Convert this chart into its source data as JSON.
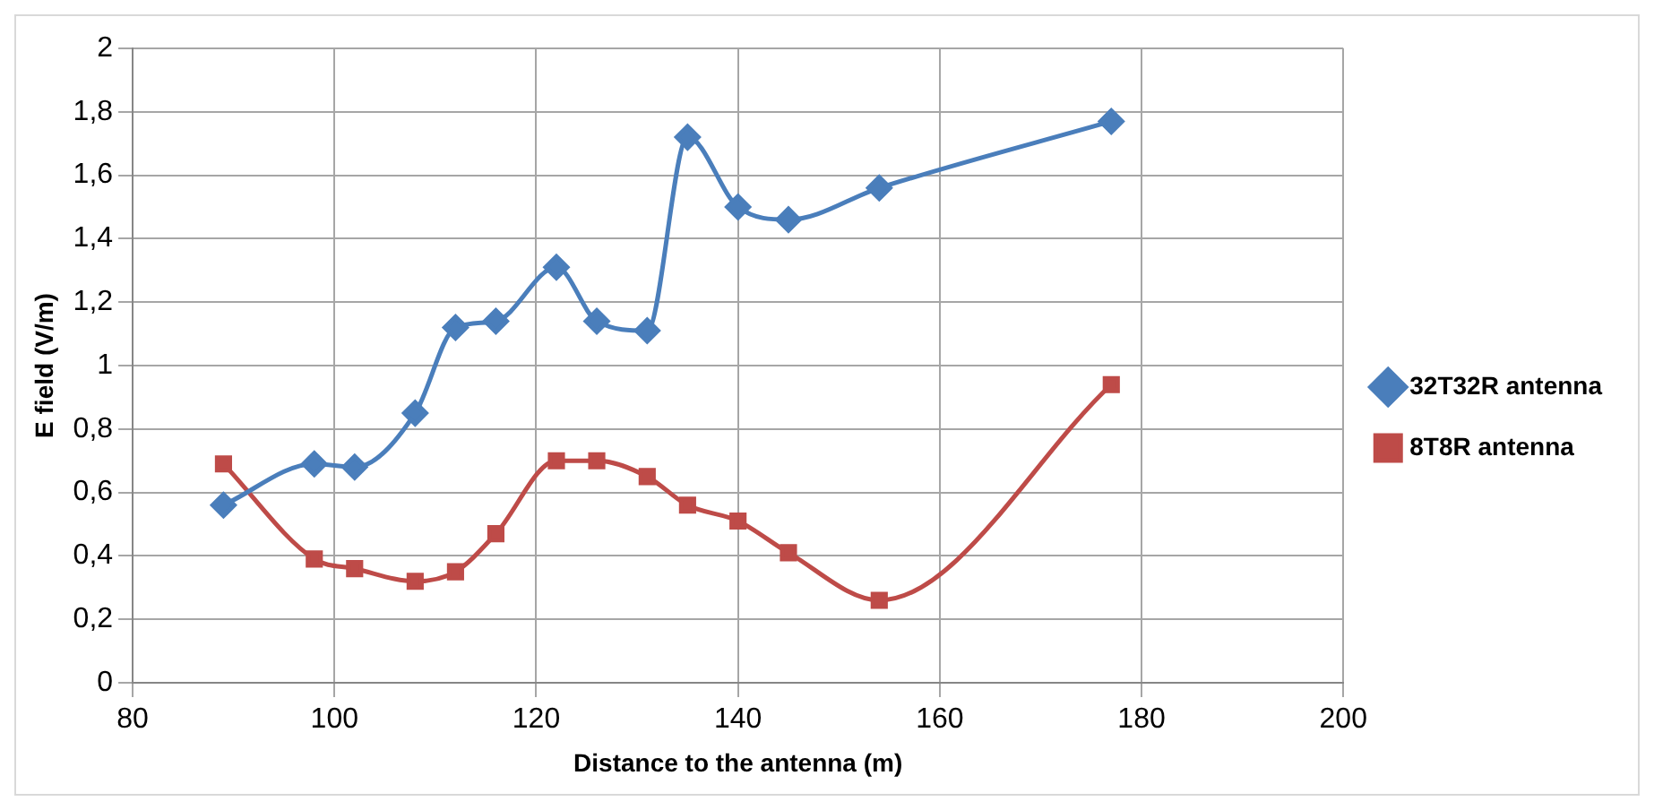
{
  "chart_data": {
    "type": "line",
    "xlabel": "Distance to the antenna (m)",
    "ylabel": "E field (V/m)",
    "xlim": [
      80,
      200
    ],
    "xticks": [
      80,
      100,
      120,
      140,
      160,
      180,
      200
    ],
    "ylim": [
      0,
      2
    ],
    "yticks": [
      0,
      {
        "value": 0.2,
        "label": "0,2"
      },
      {
        "value": 0.4,
        "label": "0,4"
      },
      {
        "value": 0.6,
        "label": "0,6"
      },
      {
        "value": 0.8,
        "label": "0,8"
      },
      1,
      {
        "value": 1.2,
        "label": "1,2"
      },
      {
        "value": 1.4,
        "label": "1,4"
      },
      {
        "value": 1.6,
        "label": "1,6"
      },
      {
        "value": 1.8,
        "label": "1,8"
      },
      2
    ],
    "grid": true,
    "legend": "right",
    "line_style": "solid",
    "series": [
      {
        "name": "32T32R antenna",
        "color": "#4a7ebb",
        "marker": "diamond",
        "x": [
          89,
          98,
          102,
          108,
          112,
          116,
          122,
          126,
          131,
          135,
          140,
          145,
          154,
          177
        ],
        "values": [
          0.56,
          0.69,
          0.68,
          0.85,
          1.12,
          1.14,
          1.31,
          1.14,
          1.11,
          1.72,
          1.5,
          1.46,
          1.56,
          1.77
        ]
      },
      {
        "name": "8T8R antenna",
        "color": "#be4b48",
        "marker": "square",
        "x": [
          89,
          98,
          102,
          108,
          112,
          116,
          122,
          126,
          131,
          135,
          140,
          145,
          154,
          177
        ],
        "values": [
          0.69,
          0.39,
          0.36,
          0.32,
          0.35,
          0.47,
          0.7,
          0.7,
          0.65,
          0.56,
          0.51,
          0.41,
          0.26,
          0.94
        ]
      }
    ]
  }
}
